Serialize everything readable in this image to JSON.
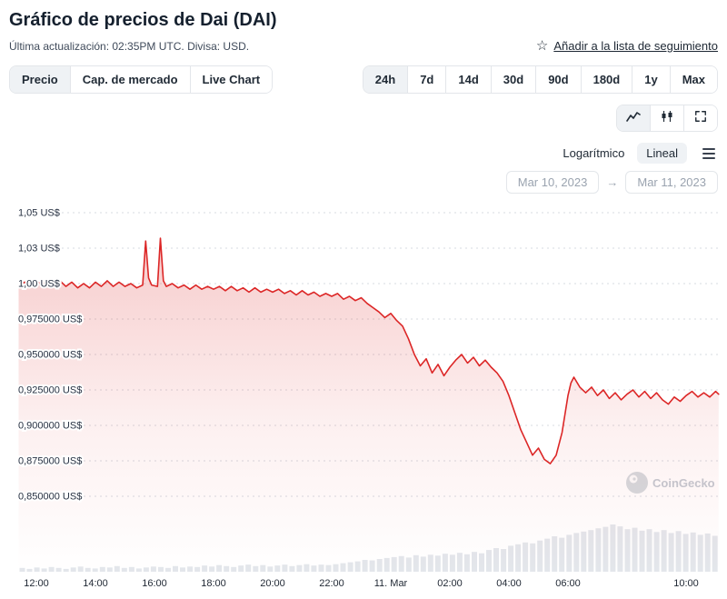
{
  "header": {
    "title": "Gráfico de precios de Dai (DAI)",
    "last_updated": "Última actualización: 02:35PM UTC. Divisa: USD.",
    "watchlist_label": "Añadir a la lista de seguimiento",
    "watchlist_icon_glyph": "☆"
  },
  "controls": {
    "view_tabs": [
      {
        "label": "Precio",
        "selected": true
      },
      {
        "label": "Cap. de mercado",
        "selected": false
      },
      {
        "label": "Live Chart",
        "selected": false
      }
    ],
    "range_tabs": [
      {
        "label": "24h",
        "selected": true
      },
      {
        "label": "7d",
        "selected": false
      },
      {
        "label": "14d",
        "selected": false
      },
      {
        "label": "30d",
        "selected": false
      },
      {
        "label": "90d",
        "selected": false
      },
      {
        "label": "180d",
        "selected": false
      },
      {
        "label": "1y",
        "selected": false
      },
      {
        "label": "Max",
        "selected": false
      }
    ],
    "chart_type_buttons": [
      {
        "icon": "line-chart-icon",
        "selected": true
      },
      {
        "icon": "candlestick-icon",
        "selected": false
      },
      {
        "icon": "fullscreen-icon",
        "selected": false
      }
    ],
    "scale_toggle": [
      {
        "label": "Logarítmico",
        "selected": false
      },
      {
        "label": "Lineal",
        "selected": true
      }
    ],
    "menu_icon": "hamburger-menu",
    "date_from": "Mar 10, 2023",
    "date_arrow": "→",
    "date_to": "Mar 11, 2023"
  },
  "watermark": {
    "label": "CoinGecko"
  },
  "chart_data": {
    "type": "line",
    "title": "Gráfico de precios de Dai (DAI) — 24h, USD",
    "xlabel": "",
    "ylabel": "",
    "x_unit": "hours since Mar 10 2023 12:00 UTC",
    "x_range": [
      -0.6,
      23.1
    ],
    "y_range": [
      0.845,
      1.055
    ],
    "grid": "dotted-horizontal",
    "legend": "none",
    "line_color": "#dc2626",
    "area_color": "#dc2626",
    "volume_color": "#e3e6eb",
    "y_ticks": [
      {
        "value": 1.05,
        "label": "1,05 US$"
      },
      {
        "value": 1.025,
        "label": "1,03 US$"
      },
      {
        "value": 1.0,
        "label": "1,00 US$"
      },
      {
        "value": 0.975,
        "label": "0,975000 US$"
      },
      {
        "value": 0.95,
        "label": "0,950000 US$"
      },
      {
        "value": 0.925,
        "label": "0,925000 US$"
      },
      {
        "value": 0.9,
        "label": "0,900000 US$"
      },
      {
        "value": 0.875,
        "label": "0,875000 US$"
      },
      {
        "value": 0.85,
        "label": "0,850000 US$"
      }
    ],
    "x_ticks": [
      {
        "t": 0,
        "label": "12:00"
      },
      {
        "t": 2,
        "label": "14:00"
      },
      {
        "t": 4,
        "label": "16:00"
      },
      {
        "t": 6,
        "label": "18:00"
      },
      {
        "t": 8,
        "label": "20:00"
      },
      {
        "t": 10,
        "label": "22:00"
      },
      {
        "t": 12,
        "label": "11. Mar"
      },
      {
        "t": 14,
        "label": "02:00"
      },
      {
        "t": 16,
        "label": "04:00"
      },
      {
        "t": 18,
        "label": "06:00"
      },
      {
        "t": 22,
        "label": "10:00"
      }
    ],
    "series": {
      "name": "DAI price (US$)",
      "points": [
        [
          -0.6,
          0.998
        ],
        [
          -0.4,
          1.001
        ],
        [
          -0.2,
          0.999
        ],
        [
          0,
          1.002
        ],
        [
          0.2,
          0.999
        ],
        [
          0.4,
          1.003
        ],
        [
          0.6,
          0.999
        ],
        [
          0.8,
          1.002
        ],
        [
          1.0,
          0.998
        ],
        [
          1.2,
          1.001
        ],
        [
          1.4,
          0.997
        ],
        [
          1.6,
          1.0
        ],
        [
          1.8,
          0.997
        ],
        [
          2.0,
          1.001
        ],
        [
          2.2,
          0.998
        ],
        [
          2.4,
          1.002
        ],
        [
          2.6,
          0.998
        ],
        [
          2.8,
          1.001
        ],
        [
          3.0,
          0.998
        ],
        [
          3.2,
          1.0
        ],
        [
          3.4,
          0.997
        ],
        [
          3.6,
          0.999
        ],
        [
          3.7,
          1.03
        ],
        [
          3.8,
          1.004
        ],
        [
          3.9,
          0.999
        ],
        [
          4.1,
          0.998
        ],
        [
          4.2,
          1.032
        ],
        [
          4.3,
          1.002
        ],
        [
          4.4,
          0.998
        ],
        [
          4.6,
          1.0
        ],
        [
          4.8,
          0.997
        ],
        [
          5.0,
          0.999
        ],
        [
          5.2,
          0.996
        ],
        [
          5.4,
          0.999
        ],
        [
          5.6,
          0.996
        ],
        [
          5.8,
          0.998
        ],
        [
          6.0,
          0.996
        ],
        [
          6.2,
          0.998
        ],
        [
          6.4,
          0.995
        ],
        [
          6.6,
          0.998
        ],
        [
          6.8,
          0.995
        ],
        [
          7.0,
          0.997
        ],
        [
          7.2,
          0.994
        ],
        [
          7.4,
          0.997
        ],
        [
          7.6,
          0.994
        ],
        [
          7.8,
          0.996
        ],
        [
          8.0,
          0.994
        ],
        [
          8.2,
          0.996
        ],
        [
          8.4,
          0.993
        ],
        [
          8.6,
          0.995
        ],
        [
          8.8,
          0.992
        ],
        [
          9.0,
          0.995
        ],
        [
          9.2,
          0.992
        ],
        [
          9.4,
          0.994
        ],
        [
          9.6,
          0.991
        ],
        [
          9.8,
          0.993
        ],
        [
          10.0,
          0.991
        ],
        [
          10.2,
          0.993
        ],
        [
          10.4,
          0.989
        ],
        [
          10.6,
          0.991
        ],
        [
          10.8,
          0.988
        ],
        [
          11.0,
          0.99
        ],
        [
          11.2,
          0.986
        ],
        [
          11.4,
          0.983
        ],
        [
          11.6,
          0.98
        ],
        [
          11.8,
          0.976
        ],
        [
          12.0,
          0.979
        ],
        [
          12.2,
          0.974
        ],
        [
          12.4,
          0.97
        ],
        [
          12.6,
          0.961
        ],
        [
          12.8,
          0.95
        ],
        [
          13.0,
          0.942
        ],
        [
          13.2,
          0.947
        ],
        [
          13.4,
          0.937
        ],
        [
          13.6,
          0.943
        ],
        [
          13.8,
          0.935
        ],
        [
          14.0,
          0.941
        ],
        [
          14.2,
          0.946
        ],
        [
          14.4,
          0.95
        ],
        [
          14.6,
          0.944
        ],
        [
          14.8,
          0.948
        ],
        [
          15.0,
          0.942
        ],
        [
          15.2,
          0.946
        ],
        [
          15.4,
          0.941
        ],
        [
          15.6,
          0.937
        ],
        [
          15.8,
          0.931
        ],
        [
          16.0,
          0.921
        ],
        [
          16.2,
          0.909
        ],
        [
          16.4,
          0.897
        ],
        [
          16.6,
          0.888
        ],
        [
          16.8,
          0.879
        ],
        [
          17.0,
          0.884
        ],
        [
          17.2,
          0.876
        ],
        [
          17.4,
          0.873
        ],
        [
          17.6,
          0.879
        ],
        [
          17.8,
          0.895
        ],
        [
          18.0,
          0.921
        ],
        [
          18.1,
          0.93
        ],
        [
          18.2,
          0.934
        ],
        [
          18.4,
          0.927
        ],
        [
          18.6,
          0.923
        ],
        [
          18.8,
          0.927
        ],
        [
          19.0,
          0.921
        ],
        [
          19.2,
          0.925
        ],
        [
          19.4,
          0.919
        ],
        [
          19.6,
          0.923
        ],
        [
          19.8,
          0.918
        ],
        [
          20.0,
          0.922
        ],
        [
          20.2,
          0.925
        ],
        [
          20.4,
          0.92
        ],
        [
          20.6,
          0.924
        ],
        [
          20.8,
          0.919
        ],
        [
          21.0,
          0.923
        ],
        [
          21.2,
          0.918
        ],
        [
          21.4,
          0.915
        ],
        [
          21.6,
          0.92
        ],
        [
          21.8,
          0.917
        ],
        [
          22.0,
          0.921
        ],
        [
          22.2,
          0.924
        ],
        [
          22.4,
          0.92
        ],
        [
          22.6,
          0.923
        ],
        [
          22.8,
          0.92
        ],
        [
          23.0,
          0.924
        ],
        [
          23.1,
          0.922
        ]
      ]
    },
    "volume": {
      "name": "volume (relative height 0-1, unlabeled in chart)",
      "values": [
        0.08,
        0.06,
        0.09,
        0.07,
        0.1,
        0.08,
        0.06,
        0.09,
        0.11,
        0.08,
        0.07,
        0.1,
        0.09,
        0.12,
        0.08,
        0.1,
        0.07,
        0.09,
        0.11,
        0.1,
        0.08,
        0.12,
        0.09,
        0.11,
        0.1,
        0.13,
        0.11,
        0.14,
        0.12,
        0.1,
        0.13,
        0.15,
        0.12,
        0.14,
        0.11,
        0.13,
        0.15,
        0.12,
        0.14,
        0.16,
        0.13,
        0.15,
        0.14,
        0.16,
        0.18,
        0.2,
        0.22,
        0.25,
        0.24,
        0.27,
        0.29,
        0.31,
        0.33,
        0.3,
        0.35,
        0.32,
        0.36,
        0.34,
        0.38,
        0.36,
        0.4,
        0.37,
        0.42,
        0.39,
        0.46,
        0.5,
        0.48,
        0.55,
        0.58,
        0.62,
        0.6,
        0.66,
        0.7,
        0.75,
        0.72,
        0.78,
        0.82,
        0.85,
        0.88,
        0.92,
        0.95,
        1.0,
        0.96,
        0.9,
        0.93,
        0.87,
        0.9,
        0.84,
        0.88,
        0.82,
        0.86,
        0.8,
        0.83,
        0.78,
        0.81,
        0.76
      ]
    }
  }
}
